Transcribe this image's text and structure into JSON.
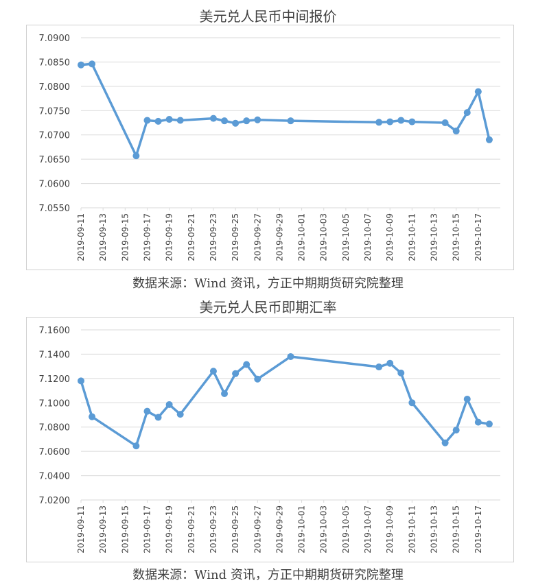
{
  "chart_data": [
    {
      "type": "line",
      "title": "美元兑人民币中间报价",
      "source": "数据来源：Wind 资讯，方正中期期货研究院整理",
      "color": "#5b9bd5",
      "grid": true,
      "ylim": [
        7.055,
        7.09
      ],
      "yticks": [
        "7.0550",
        "7.0600",
        "7.0650",
        "7.0700",
        "7.0750",
        "7.0800",
        "7.0850",
        "7.0900"
      ],
      "xlim": [
        "2019-09-11",
        "2019-10-19"
      ],
      "xticks": [
        "2019-09-11",
        "2019-09-13",
        "2019-09-15",
        "2019-09-17",
        "2019-09-19",
        "2019-09-21",
        "2019-09-23",
        "2019-09-25",
        "2019-09-27",
        "2019-09-29",
        "2019-10-01",
        "2019-10-03",
        "2019-10-05",
        "2019-10-07",
        "2019-10-09",
        "2019-10-11",
        "2019-10-13",
        "2019-10-15",
        "2019-10-17"
      ],
      "points": [
        {
          "x": "2019-09-11",
          "y": 7.0844
        },
        {
          "x": "2019-09-12",
          "y": 7.0846
        },
        {
          "x": "2019-09-16",
          "y": 7.0657
        },
        {
          "x": "2019-09-17",
          "y": 7.073
        },
        {
          "x": "2019-09-18",
          "y": 7.0728
        },
        {
          "x": "2019-09-19",
          "y": 7.0732
        },
        {
          "x": "2019-09-20",
          "y": 7.073
        },
        {
          "x": "2019-09-23",
          "y": 7.0734
        },
        {
          "x": "2019-09-24",
          "y": 7.0729
        },
        {
          "x": "2019-09-25",
          "y": 7.0724
        },
        {
          "x": "2019-09-26",
          "y": 7.0729
        },
        {
          "x": "2019-09-27",
          "y": 7.0731
        },
        {
          "x": "2019-09-30",
          "y": 7.0729
        },
        {
          "x": "2019-10-08",
          "y": 7.0726
        },
        {
          "x": "2019-10-09",
          "y": 7.0727
        },
        {
          "x": "2019-10-10",
          "y": 7.073
        },
        {
          "x": "2019-10-11",
          "y": 7.0727
        },
        {
          "x": "2019-10-14",
          "y": 7.0725
        },
        {
          "x": "2019-10-15",
          "y": 7.0708
        },
        {
          "x": "2019-10-16",
          "y": 7.0746
        },
        {
          "x": "2019-10-17",
          "y": 7.0789
        },
        {
          "x": "2019-10-18",
          "y": 7.069
        }
      ]
    },
    {
      "type": "line",
      "title": "美元兑人民币即期汇率",
      "source": "数据来源：Wind 资讯，方正中期期货研究院整理",
      "color": "#5b9bd5",
      "grid": true,
      "ylim": [
        7.02,
        7.16
      ],
      "yticks": [
        "7.0200",
        "7.0400",
        "7.0600",
        "7.0800",
        "7.1000",
        "7.1200",
        "7.1400",
        "7.1600"
      ],
      "xlim": [
        "2019-09-11",
        "2019-10-19"
      ],
      "xticks": [
        "2019-09-11",
        "2019-09-13",
        "2019-09-15",
        "2019-09-17",
        "2019-09-19",
        "2019-09-21",
        "2019-09-23",
        "2019-09-25",
        "2019-09-27",
        "2019-09-29",
        "2019-10-01",
        "2019-10-03",
        "2019-10-05",
        "2019-10-07",
        "2019-10-09",
        "2019-10-11",
        "2019-10-13",
        "2019-10-15",
        "2019-10-17"
      ],
      "points": [
        {
          "x": "2019-09-11",
          "y": 7.118
        },
        {
          "x": "2019-09-12",
          "y": 7.0885
        },
        {
          "x": "2019-09-16",
          "y": 7.0645
        },
        {
          "x": "2019-09-17",
          "y": 7.093
        },
        {
          "x": "2019-09-18",
          "y": 7.088
        },
        {
          "x": "2019-09-19",
          "y": 7.0985
        },
        {
          "x": "2019-09-20",
          "y": 7.0905
        },
        {
          "x": "2019-09-23",
          "y": 7.126
        },
        {
          "x": "2019-09-24",
          "y": 7.1075
        },
        {
          "x": "2019-09-25",
          "y": 7.124
        },
        {
          "x": "2019-09-26",
          "y": 7.1315
        },
        {
          "x": "2019-09-27",
          "y": 7.1195
        },
        {
          "x": "2019-09-30",
          "y": 7.138
        },
        {
          "x": "2019-10-08",
          "y": 7.1295
        },
        {
          "x": "2019-10-09",
          "y": 7.1325
        },
        {
          "x": "2019-10-10",
          "y": 7.1245
        },
        {
          "x": "2019-10-11",
          "y": 7.1
        },
        {
          "x": "2019-10-14",
          "y": 7.067
        },
        {
          "x": "2019-10-15",
          "y": 7.0775
        },
        {
          "x": "2019-10-16",
          "y": 7.103
        },
        {
          "x": "2019-10-17",
          "y": 7.084
        },
        {
          "x": "2019-10-18",
          "y": 7.0825
        }
      ]
    }
  ]
}
